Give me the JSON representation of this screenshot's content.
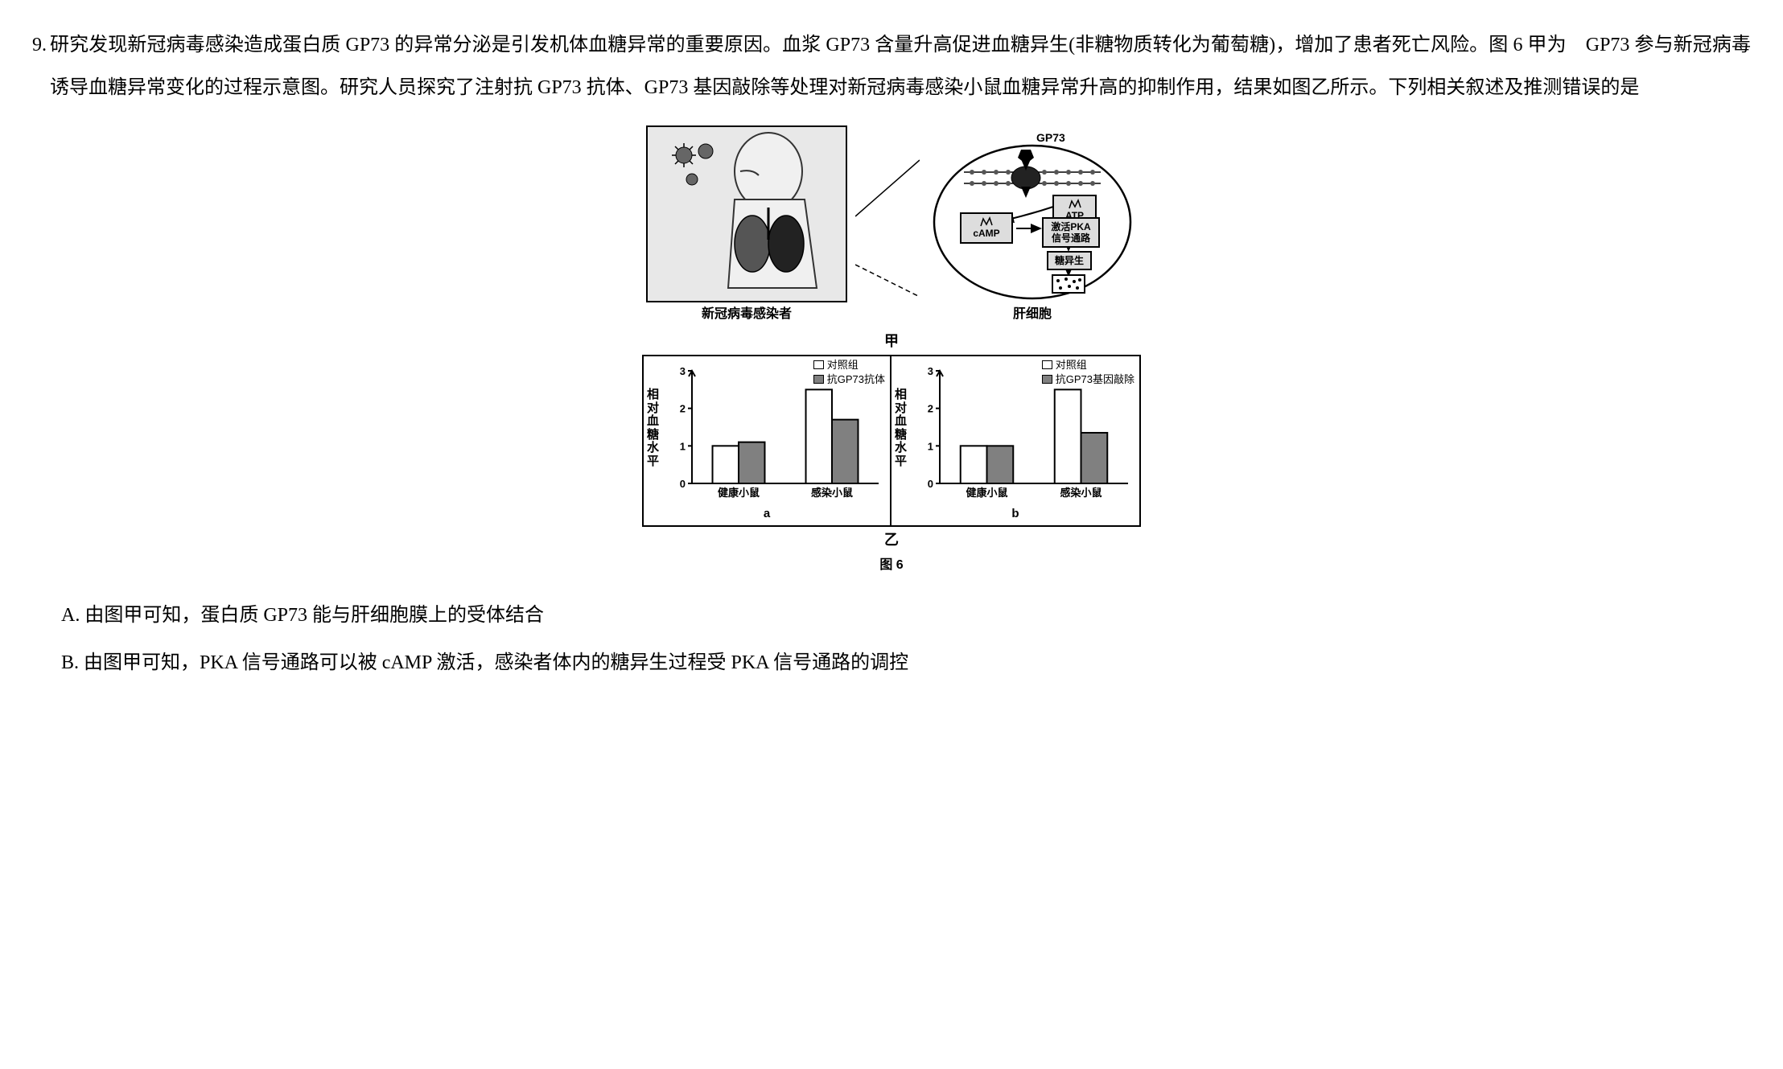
{
  "question": {
    "number": "9.",
    "text": "研究发现新冠病毒感染造成蛋白质 GP73 的异常分泌是引发机体血糖异常的重要原因。血浆 GP73 含量升高促进血糖异生(非糖物质转化为葡萄糖)，增加了患者死亡风险。图 6 甲为 GP73 参与新冠病毒诱导血糖异常变化的过程示意图。研究人员探究了注射抗 GP73 抗体、GP73 基因敲除等处理对新冠病毒感染小鼠血糖异常升高的抑制作用，结果如图乙所示。下列相关叙述及推测错误的是"
  },
  "figure": {
    "jia": {
      "left_caption": "新冠病毒感染者",
      "right_caption": "肝细胞",
      "panel_label": "甲",
      "gp73_label": "GP73",
      "flow_labels": {
        "atp": "ATP",
        "camp": "cAMP",
        "pka": "激活PKA信号通路",
        "gluconeo": "糖异生"
      }
    },
    "yi": {
      "panel_label": "乙",
      "figure_label": "图 6",
      "ylabel": "相对血糖水平",
      "chart_a": {
        "type": "bar",
        "sub_label": "a",
        "ylim": [
          0,
          3
        ],
        "yticks": [
          0,
          1,
          2,
          3
        ],
        "categories": [
          "健康小鼠",
          "感染小鼠"
        ],
        "series": [
          {
            "name": "对照组",
            "color": "#ffffff",
            "values": [
              1.0,
              2.5
            ]
          },
          {
            "name": "抗GP73抗体",
            "color": "#808080",
            "values": [
              1.1,
              1.7
            ]
          }
        ],
        "axis_color": "#000000",
        "bar_border": "#000000",
        "font_size": 13
      },
      "chart_b": {
        "type": "bar",
        "sub_label": "b",
        "ylim": [
          0,
          3
        ],
        "yticks": [
          0,
          1,
          2,
          3
        ],
        "categories": [
          "健康小鼠",
          "感染小鼠"
        ],
        "series": [
          {
            "name": "对照组",
            "color": "#ffffff",
            "values": [
              1.0,
              2.5
            ]
          },
          {
            "name": "抗GP73基因敲除",
            "color": "#808080",
            "values": [
              1.0,
              1.35
            ]
          }
        ],
        "axis_color": "#000000",
        "bar_border": "#000000",
        "font_size": 13
      }
    }
  },
  "options": {
    "A": "由图甲可知，蛋白质 GP73 能与肝细胞膜上的受体结合",
    "B": "由图甲可知，PKA 信号通路可以被 cAMP 激活，感染者体内的糖异生过程受 PKA 信号通路的调控"
  }
}
